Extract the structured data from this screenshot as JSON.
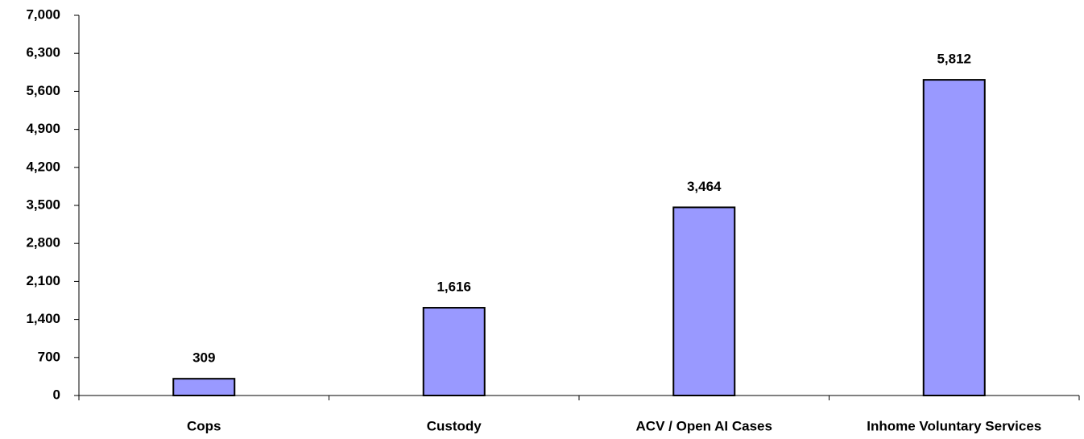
{
  "chart_data": {
    "type": "bar",
    "categories": [
      "Cops",
      "Custody",
      "ACV / Open AI Cases",
      "Inhome Voluntary Services"
    ],
    "values": [
      309,
      1616,
      3464,
      5812
    ],
    "value_labels": [
      "309",
      "1,616",
      "3,464",
      "5,812"
    ],
    "color": "#9999ff",
    "ylim": [
      0,
      7000
    ],
    "yticks": [
      0,
      700,
      {
        "value": 1400,
        "label": "1,400"
      },
      {
        "value": 2100,
        "label": "2,100"
      },
      {
        "value": 2800,
        "label": "2,800"
      },
      {
        "value": 3500,
        "label": "3,500"
      },
      {
        "value": 4200,
        "label": "4,200"
      },
      {
        "value": 4900,
        "label": "4,900"
      },
      {
        "value": 5600,
        "label": "5,600"
      },
      {
        "value": 6300,
        "label": "6,300"
      },
      {
        "value": 7000,
        "label": "7,000"
      }
    ],
    "grid": false
  }
}
